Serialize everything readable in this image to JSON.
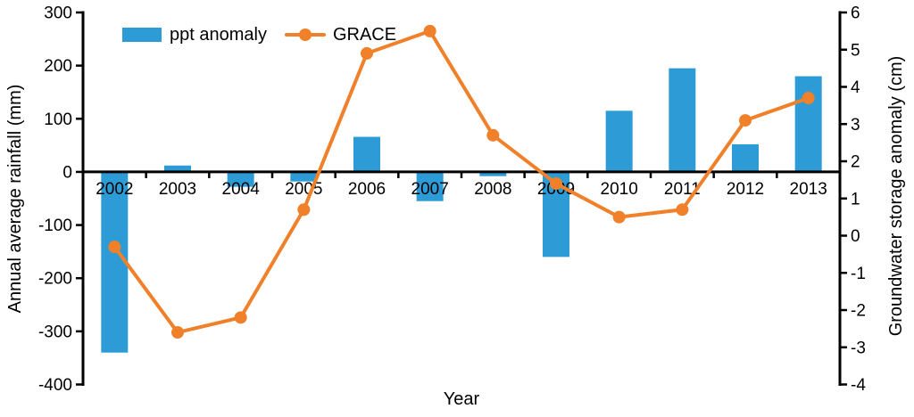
{
  "chart_data": {
    "type": "bar",
    "subtype": "bar-line-combo",
    "categories": [
      "2002",
      "2003",
      "2004",
      "2005",
      "2006",
      "2007",
      "2008",
      "2009",
      "2010",
      "2011",
      "2012",
      "2013"
    ],
    "series": [
      {
        "name": "ppt anomaly",
        "render": "bar",
        "axis": "left",
        "color": "#2D9BD6",
        "values": [
          -340,
          12,
          -28,
          -18,
          66,
          -55,
          -8,
          -160,
          115,
          195,
          52,
          180
        ]
      },
      {
        "name": "GRACE",
        "render": "line",
        "axis": "right",
        "color": "#F0802A",
        "values": [
          -0.3,
          -2.6,
          -2.2,
          0.7,
          4.9,
          5.5,
          2.7,
          1.4,
          0.5,
          0.7,
          3.1,
          3.7
        ]
      }
    ],
    "left_axis": {
      "label": "Annual average rainfall (mm)",
      "min": -400,
      "max": 300,
      "ticks": [
        300,
        200,
        100,
        0,
        -100,
        -200,
        -300,
        -400
      ]
    },
    "right_axis": {
      "label": "Groundwater storage anomaly (cm)",
      "min": -4,
      "max": 6,
      "ticks": [
        6,
        5,
        4,
        3,
        2,
        1,
        0,
        -1,
        -2,
        -3,
        -4
      ]
    },
    "x_axis": {
      "label": "Year"
    },
    "legend": {
      "position": "top-left-inside",
      "items": [
        "ppt anomaly",
        "GRACE"
      ]
    },
    "grid": "off",
    "axis_color": "#000000",
    "background": "#FFFFFF"
  }
}
